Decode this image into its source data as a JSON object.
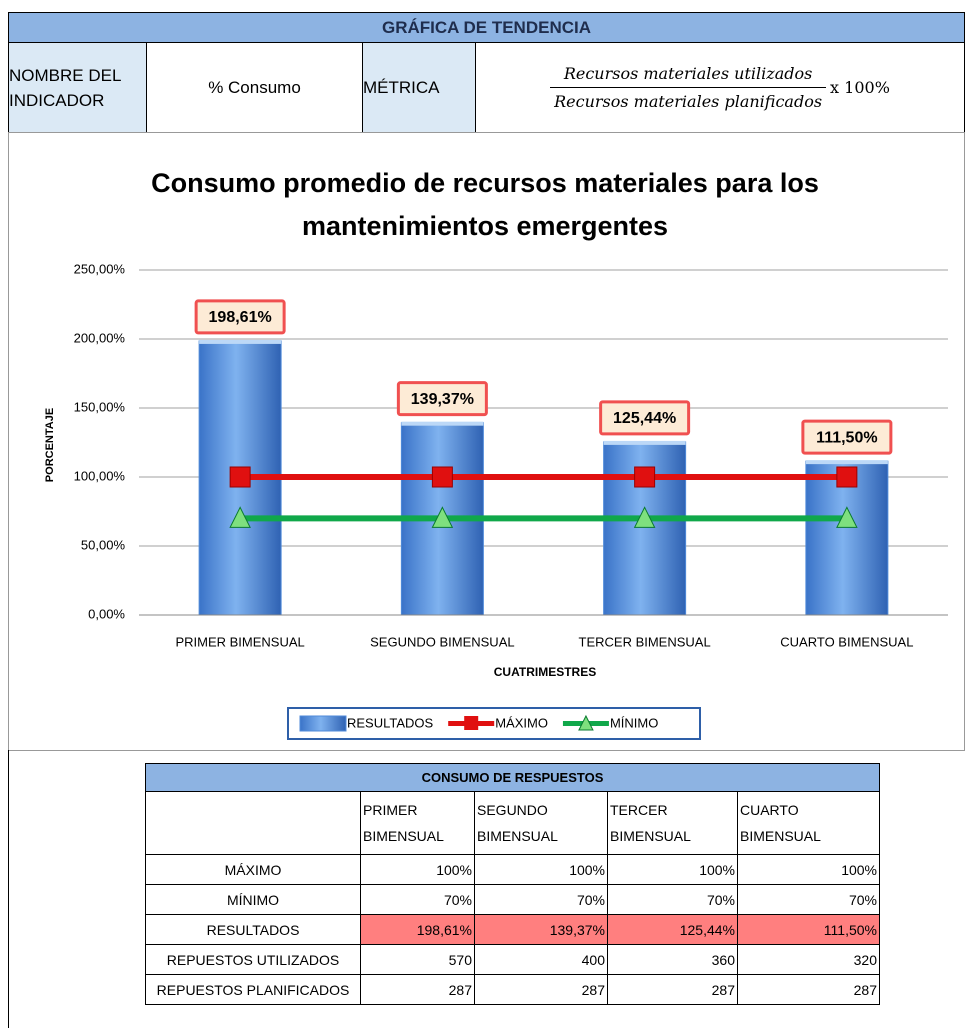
{
  "header": {
    "title": "GRÁFICA DE TENDENCIA",
    "name_label": "NOMBRE DEL INDICADOR",
    "name_value": "% Consumo",
    "metric_label": "MÉTRICA",
    "formula_numerator": "Recursos materiales utilizados",
    "formula_denominator": "Recursos materiales  planificados",
    "formula_suffix": "x 100%"
  },
  "chart_data": {
    "type": "bar_line",
    "title": "Consumo  promedio de recursos materiales para los mantenimientos emergentes",
    "categories": [
      "PRIMER BIMENSUAL",
      "SEGUNDO BIMENSUAL",
      "TERCER BIMENSUAL",
      "CUARTO BIMENSUAL"
    ],
    "x_label": "CUATRIMESTRES",
    "y_label": "PORCENTAJE",
    "ylim": [
      0,
      250
    ],
    "yticks": [
      {
        "value": 0,
        "label": "0,00%"
      },
      {
        "value": 50,
        "label": "50,00%"
      },
      {
        "value": 100,
        "label": "100,00%"
      },
      {
        "value": 150,
        "label": "150,00%"
      },
      {
        "value": 200,
        "label": "200,00%"
      },
      {
        "value": 250,
        "label": "250,00%"
      }
    ],
    "grid": true,
    "legend": "bottom",
    "series": [
      {
        "name": "RESULTADOS",
        "kind": "bar",
        "color": "#4f8ad9",
        "values": [
          198.61,
          139.37,
          125.44,
          111.5
        ],
        "value_labels": [
          "198,61%",
          "139,37%",
          "125,44%",
          "111,50%"
        ]
      },
      {
        "name": "MÁXIMO",
        "kind": "line",
        "marker": "square",
        "color": "#e01010",
        "values": [
          100,
          100,
          100,
          100
        ]
      },
      {
        "name": "MÍNIMO",
        "kind": "line",
        "marker": "triangle",
        "color": "#10a84a",
        "values": [
          70,
          70,
          70,
          70
        ]
      }
    ]
  },
  "table": {
    "title": "CONSUMO DE RESPUESTOS",
    "columns": [
      "",
      "PRIMER BIMENSUAL",
      "SEGUNDO BIMENSUAL",
      "TERCER BIMENSUAL",
      "CUARTO BIMENSUAL"
    ],
    "rows": [
      [
        "MÁXIMO",
        "100%",
        "100%",
        "100%",
        "100%"
      ],
      [
        "MÍNIMO",
        "70%",
        "70%",
        "70%",
        "70%"
      ],
      [
        "RESULTADOS",
        "198,61%",
        "139,37%",
        "125,44%",
        "111,50%"
      ],
      [
        "REPUESTOS UTILIZADOS",
        "570",
        "400",
        "360",
        "320"
      ],
      [
        "REPUESTOS PLANIFICADOS",
        "287",
        "287",
        "287",
        "287"
      ]
    ]
  }
}
